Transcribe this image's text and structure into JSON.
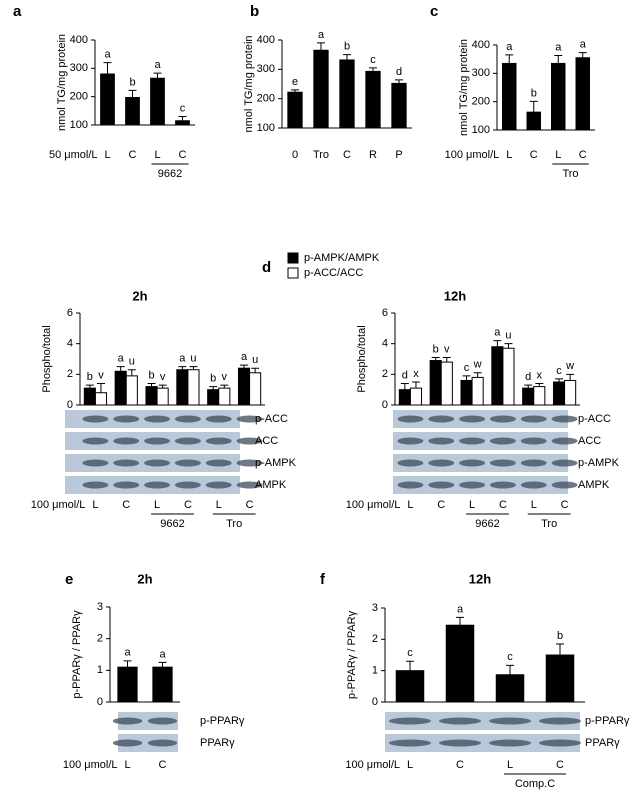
{
  "chart_data": [
    {
      "type": "bar",
      "panel": "a",
      "ylabel": "nmol TG/mg protein",
      "prefix": "50 μmol/L",
      "categories": [
        "L",
        "C",
        "L",
        "C"
      ],
      "groups": [
        "9662"
      ],
      "values": [
        280,
        197,
        265,
        115
      ],
      "errors": [
        40,
        25,
        18,
        15
      ],
      "letters": [
        "a",
        "b",
        "a",
        "c"
      ],
      "color": "#000000",
      "ylim": [
        100,
        400
      ],
      "yticks": [
        100,
        200,
        300,
        400
      ]
    },
    {
      "type": "bar",
      "panel": "b",
      "ylabel": "nmol TG/mg protein",
      "categories": [
        "0",
        "Tro",
        "C",
        "R",
        "P"
      ],
      "values": [
        222,
        365,
        332,
        293,
        252
      ],
      "errors": [
        8,
        25,
        18,
        12,
        12
      ],
      "letters": [
        "e",
        "a",
        "b",
        "c",
        "d"
      ],
      "color": "#000000",
      "ylim": [
        100,
        400
      ],
      "yticks": [
        100,
        200,
        300,
        400
      ]
    },
    {
      "type": "bar",
      "panel": "c",
      "ylabel": "nmol TG/mg protein",
      "prefix": "100 μmol/L",
      "categories": [
        "L",
        "C",
        "L",
        "C"
      ],
      "groups": [
        "Tro"
      ],
      "values": [
        335,
        163,
        335,
        355
      ],
      "errors": [
        30,
        38,
        28,
        18
      ],
      "letters": [
        "a",
        "b",
        "a",
        "a"
      ],
      "color": "#000000",
      "ylim": [
        100,
        400
      ],
      "yticks": [
        100,
        200,
        300,
        400
      ]
    },
    {
      "type": "grouped-bar",
      "panel": "d",
      "title": "2h",
      "ylabel": "Phospho/total",
      "prefix": "100 μmol/L",
      "legend": "top",
      "categories": [
        "L",
        "C",
        "L",
        "C",
        "L",
        "C"
      ],
      "groups": [
        "9662",
        "Tro"
      ],
      "series": [
        {
          "name": "p-AMPK/AMPK",
          "color": "#000000",
          "values": [
            1.1,
            2.2,
            1.2,
            2.3,
            1.0,
            2.4
          ],
          "errors": [
            0.2,
            0.3,
            0.2,
            0.2,
            0.2,
            0.2
          ],
          "letters": [
            "b",
            "a",
            "b",
            "a",
            "b",
            "a"
          ]
        },
        {
          "name": "p-ACC/ACC",
          "color": "#ffffff",
          "values": [
            0.8,
            1.9,
            1.1,
            2.3,
            1.1,
            2.1
          ],
          "errors": [
            0.6,
            0.4,
            0.2,
            0.2,
            0.2,
            0.3
          ],
          "letters": [
            "v",
            "u",
            "v",
            "u",
            "v",
            "u"
          ]
        }
      ],
      "blots": [
        "p-ACC",
        "ACC",
        "p-AMPK",
        "AMPK"
      ],
      "ylim": [
        0,
        6
      ],
      "yticks": [
        0,
        2,
        4,
        6
      ]
    },
    {
      "type": "grouped-bar",
      "title": "12h",
      "ylabel": "Phospho/total",
      "prefix": "100 μmol/L",
      "categories": [
        "L",
        "C",
        "L",
        "C",
        "L",
        "C"
      ],
      "groups": [
        "9662",
        "Tro"
      ],
      "series": [
        {
          "name": "p-AMPK/AMPK",
          "color": "#000000",
          "values": [
            1.0,
            2.9,
            1.6,
            3.8,
            1.1,
            1.5
          ],
          "errors": [
            0.4,
            0.2,
            0.3,
            0.4,
            0.2,
            0.2
          ],
          "letters": [
            "d",
            "b",
            "c",
            "a",
            "d",
            "c"
          ]
        },
        {
          "name": "p-ACC/ACC",
          "color": "#ffffff",
          "values": [
            1.1,
            2.8,
            1.8,
            3.7,
            1.2,
            1.6
          ],
          "errors": [
            0.4,
            0.3,
            0.3,
            0.3,
            0.2,
            0.4
          ],
          "letters": [
            "x",
            "v",
            "w",
            "u",
            "x",
            "w"
          ]
        }
      ],
      "blots": [
        "p-ACC",
        "ACC",
        "p-AMPK",
        "AMPK"
      ],
      "ylim": [
        0,
        6
      ],
      "yticks": [
        0,
        2,
        4,
        6
      ]
    },
    {
      "type": "bar",
      "panel": "e",
      "title": "2h",
      "ylabel": "p-PPARγ / PPARγ",
      "prefix": "100 μmol/L",
      "categories": [
        "L",
        "C"
      ],
      "values": [
        1.1,
        1.1
      ],
      "errors": [
        0.2,
        0.15
      ],
      "letters": [
        "a",
        "a"
      ],
      "color": "#000000",
      "blots": [
        "p-PPARγ",
        "PPARγ"
      ],
      "ylim": [
        0,
        3
      ],
      "yticks": [
        0,
        1,
        2,
        3
      ]
    },
    {
      "type": "bar",
      "panel": "f",
      "title": "12h",
      "ylabel": "p-PPARγ / PPARγ",
      "prefix": "100 μmol/L",
      "categories": [
        "L",
        "C",
        "L",
        "C"
      ],
      "groups": [
        "Comp.C"
      ],
      "values": [
        1.0,
        2.45,
        0.87,
        1.5
      ],
      "errors": [
        0.3,
        0.25,
        0.3,
        0.35
      ],
      "letters": [
        "c",
        "a",
        "c",
        "b"
      ],
      "color": "#000000",
      "blots": [
        "p-PPARγ",
        "PPARγ"
      ],
      "ylim": [
        0,
        3
      ],
      "yticks": [
        0,
        1,
        2,
        3
      ]
    }
  ]
}
